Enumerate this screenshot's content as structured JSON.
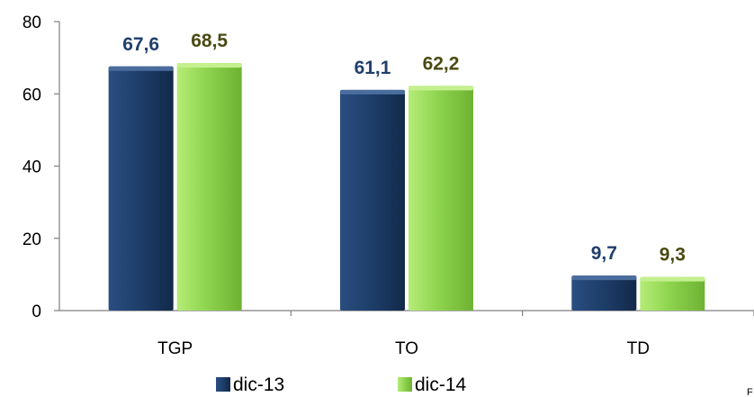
{
  "chart_data": {
    "type": "bar",
    "categories": [
      "TGP",
      "TO",
      "TD"
    ],
    "series": [
      {
        "name": "dic-13",
        "values": [
          67.6,
          61.1,
          9.7
        ],
        "labels": [
          "67,6",
          "61,1",
          "9,7"
        ]
      },
      {
        "name": "dic-14",
        "values": [
          68.5,
          62.2,
          9.3
        ],
        "labels": [
          "68,5",
          "62,2",
          "9,3"
        ]
      }
    ],
    "ylim": [
      0,
      80
    ],
    "yticks": [
      "0",
      "20",
      "40",
      "60",
      "80"
    ],
    "grid": false,
    "legend": "bottom",
    "colors": {
      "series1": "#1f3f6b",
      "series1_light": "#4a6d9e",
      "series2": "#8fd44f",
      "series2_light": "#c4f08f",
      "label1": "#1f3f6b",
      "label2": "#4a4a12",
      "axis": "#7f7f7f"
    }
  },
  "footer_glyph": "F"
}
